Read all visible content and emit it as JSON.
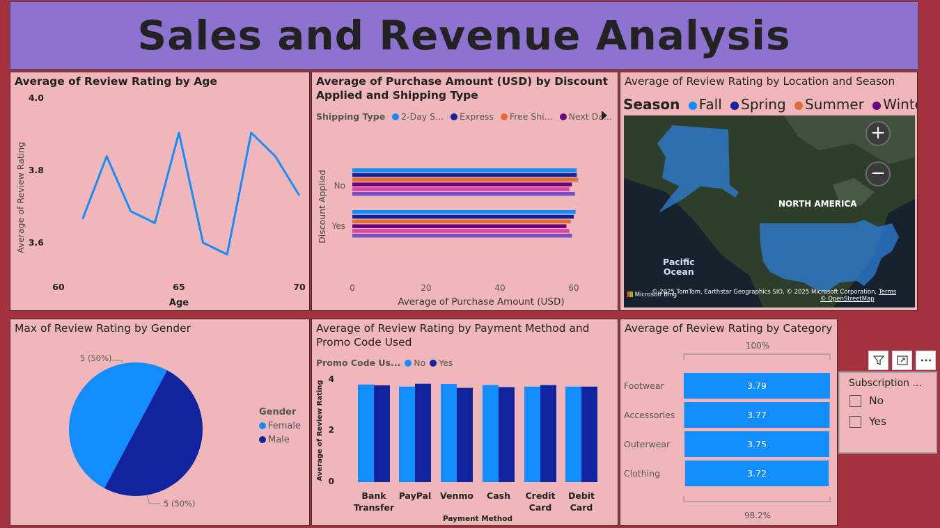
{
  "title": "Sales and Revenue Analysis",
  "colors": {
    "background": "#a3343f",
    "banner": "#8e72cf",
    "panel": "#f0b7ba",
    "light_blue": "#118dff",
    "dark_blue": "#12239e",
    "orange": "#e66c37",
    "purple": "#6b007b",
    "pink": "#e044a7",
    "violet": "#744ec2"
  },
  "age_chart": {
    "title": "Average of Review Rating by Age",
    "ylabel": "Average of Review Rating",
    "xlabel": "Age",
    "yticks": [
      "4.0",
      "3.8",
      "3.6"
    ],
    "xticks": [
      "60",
      "65",
      "70"
    ],
    "chart_data": {
      "type": "line",
      "x": [
        61,
        62,
        63,
        64,
        65,
        66,
        67,
        68,
        69,
        70
      ],
      "y": [
        3.69,
        3.85,
        3.71,
        3.68,
        3.91,
        3.63,
        3.6,
        3.91,
        3.85,
        3.75
      ],
      "ylim": [
        3.55,
        4.0
      ],
      "xlim": [
        59,
        70.3
      ]
    }
  },
  "discount_chart": {
    "title_line1": "Average of Purchase Amount (USD) by Discount",
    "title_line2": "Applied and Shipping Type",
    "legend_title": "Shipping Type",
    "legend": [
      {
        "label": "2-Day S...",
        "color": "#118dff"
      },
      {
        "label": "Express",
        "color": "#12239e"
      },
      {
        "label": "Free Shi...",
        "color": "#e66c37"
      },
      {
        "label": "Next Da...",
        "color": "#6b007b"
      }
    ],
    "ylabel": "Discount Applied",
    "xlabel": "Average of Purchase Amount (USD)",
    "xticks": [
      "0",
      "20",
      "40",
      "60"
    ],
    "chart_data": {
      "type": "bar",
      "categories": [
        "No",
        "Yes"
      ],
      "series_colors": [
        "#118dff",
        "#12239e",
        "#e66c37",
        "#6b007b",
        "#e044a7",
        "#744ec2"
      ],
      "values": [
        [
          60.8,
          60.8,
          61.2,
          59.5,
          58.8,
          60.3
        ],
        [
          60.5,
          60.0,
          59.2,
          58.0,
          58.8,
          59.5
        ]
      ],
      "xlim": [
        0,
        70
      ]
    }
  },
  "map_panel": {
    "title": "Average of Review Rating by Location and Season",
    "legend_title": "Season",
    "legend": [
      {
        "label": "Fall",
        "color": "#118dff"
      },
      {
        "label": "Spring",
        "color": "#12239e"
      },
      {
        "label": "Summer",
        "color": "#e66c37"
      },
      {
        "label": "Winter",
        "color": "#6b007b"
      }
    ],
    "label_continent": "NORTH AMERICA",
    "label_ocean_1": "Pacific",
    "label_ocean_2": "Ocean",
    "zoom_in": "+",
    "zoom_out": "−",
    "attribution": "© 2025 TomTom, Earthstar Geographics SIO, © 2025 Microsoft Corporation,",
    "terms": "Terms",
    "osm": "© OpenStreetMap",
    "bing": "Microsoft Bing"
  },
  "gender_chart": {
    "title": "Max of Review Rating by Gender",
    "legend_title": "Gender",
    "legend": [
      {
        "label": "Female",
        "color": "#118dff"
      },
      {
        "label": "Male",
        "color": "#12239e"
      }
    ],
    "label_top": "5 (50%)",
    "label_bottom": "5 (50%)",
    "chart_data": {
      "type": "pie",
      "labels": [
        "Female",
        "Male"
      ],
      "values": [
        5,
        5
      ]
    }
  },
  "payment_chart": {
    "title_line1": "Average of Review Rating by Payment Method and",
    "title_line2": "Promo Code Used",
    "legend_title": "Promo Code Us...",
    "legend": [
      {
        "label": "No",
        "color": "#118dff"
      },
      {
        "label": "Yes",
        "color": "#12239e"
      }
    ],
    "ylabel": "Average of Review Rating",
    "xlabel": "Payment Method",
    "yticks": [
      "4",
      "2",
      "0"
    ],
    "chart_data": {
      "type": "bar",
      "categories": [
        [
          "Bank",
          "Transfer"
        ],
        [
          "PayPal"
        ],
        [
          "Venmo"
        ],
        [
          "Cash"
        ],
        [
          "Credit",
          "Card"
        ],
        [
          "Debit",
          "Card"
        ]
      ],
      "series": [
        {
          "name": "No",
          "values": [
            3.79,
            3.71,
            3.81,
            3.77,
            3.71,
            3.71
          ]
        },
        {
          "name": "Yes",
          "values": [
            3.76,
            3.82,
            3.66,
            3.69,
            3.77,
            3.71
          ]
        }
      ],
      "ylim": [
        0,
        4
      ]
    }
  },
  "category_chart": {
    "title": "Average of Review Rating by Category",
    "top_label": "100%",
    "bottom_label": "98.2%",
    "chart_data": {
      "type": "bar",
      "categories": [
        "Footwear",
        "Accessories",
        "Outerwear",
        "Clothing"
      ],
      "values": [
        3.79,
        3.77,
        3.75,
        3.72
      ],
      "value_labels": [
        "3.79",
        "3.77",
        "3.75",
        "3.72"
      ]
    }
  },
  "slicer": {
    "title": "Subscription ...",
    "options": [
      "No",
      "Yes"
    ]
  }
}
